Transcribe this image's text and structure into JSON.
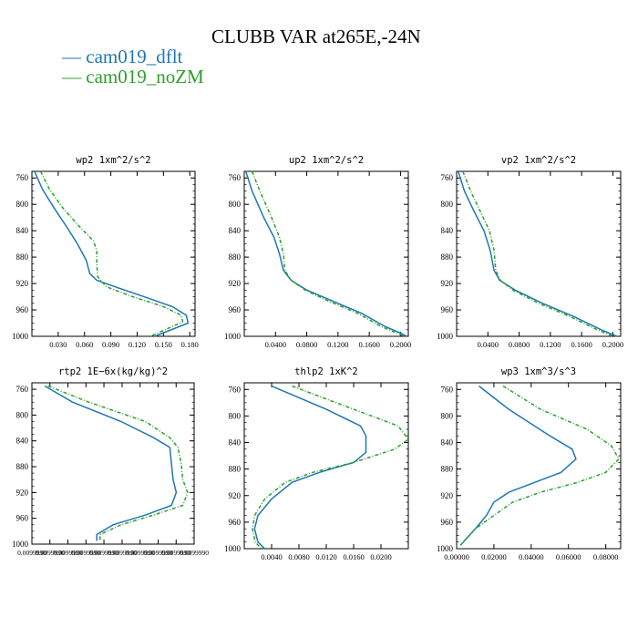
{
  "title": "CLUBB VAR at265E,-24N",
  "legend": [
    {
      "label": "— cam019_dflt",
      "color": "#1f77b4"
    },
    {
      "label": "— cam019_noZM",
      "color": "#2ca02c"
    }
  ],
  "chart_data": [
    {
      "type": "line",
      "title": "wp2   1xm^2/s^2",
      "xlim": [
        0.0,
        0.186
      ],
      "ylim": [
        750,
        1000
      ],
      "y_reversed": true,
      "xticks": [
        0.03,
        0.06,
        0.09,
        0.12,
        0.15,
        0.18
      ],
      "xticklabels": [
        "0.030",
        "0.060",
        "0.090",
        "0.120",
        "0.150",
        "0.180"
      ],
      "yticks": [
        760,
        800,
        840,
        880,
        920,
        960,
        1000
      ],
      "series": [
        {
          "name": "cam019_dflt",
          "color": "#1f77b4",
          "dashed": false,
          "x": [
            0.003,
            0.012,
            0.025,
            0.04,
            0.052,
            0.062,
            0.066,
            0.074,
            0.095,
            0.128,
            0.16,
            0.176,
            0.178,
            0.14
          ],
          "y": [
            750,
            777,
            805,
            835,
            860,
            885,
            905,
            915,
            925,
            940,
            955,
            968,
            980,
            1000
          ]
        },
        {
          "name": "cam019_noZM",
          "color": "#2ca02c",
          "dashed": true,
          "x": [
            0.01,
            0.02,
            0.035,
            0.055,
            0.07,
            0.074,
            0.074,
            0.075,
            0.085,
            0.115,
            0.15,
            0.17,
            0.172,
            0.135
          ],
          "y": [
            750,
            777,
            805,
            835,
            855,
            870,
            890,
            910,
            925,
            940,
            955,
            968,
            978,
            1000
          ]
        }
      ]
    },
    {
      "type": "line",
      "title": "up2   1xm^2/s^2",
      "xlim": [
        0.0,
        0.21
      ],
      "ylim": [
        750,
        1000
      ],
      "y_reversed": true,
      "xticks": [
        0.04,
        0.08,
        0.12,
        0.16,
        0.2
      ],
      "xticklabels": [
        "0.0400",
        "0.0800",
        "0.1200",
        "0.1600",
        "0.2000"
      ],
      "yticks": [
        760,
        800,
        840,
        880,
        920,
        960,
        1000
      ],
      "series": [
        {
          "name": "cam019_dflt",
          "color": "#1f77b4",
          "dashed": false,
          "x": [
            0.002,
            0.01,
            0.025,
            0.038,
            0.045,
            0.05,
            0.06,
            0.08,
            0.11,
            0.15,
            0.18,
            0.2,
            0.208
          ],
          "y": [
            750,
            780,
            820,
            850,
            875,
            900,
            915,
            930,
            945,
            965,
            985,
            995,
            1000
          ]
        },
        {
          "name": "cam019_noZM",
          "color": "#2ca02c",
          "dashed": true,
          "x": [
            0.01,
            0.02,
            0.035,
            0.045,
            0.05,
            0.052,
            0.06,
            0.078,
            0.105,
            0.145,
            0.175,
            0.195,
            0.205
          ],
          "y": [
            750,
            780,
            820,
            850,
            875,
            900,
            915,
            930,
            945,
            965,
            985,
            995,
            1000
          ]
        }
      ]
    },
    {
      "type": "line",
      "title": "vp2   1xm^2/s^2",
      "xlim": [
        0.0,
        0.21
      ],
      "ylim": [
        750,
        1000
      ],
      "y_reversed": true,
      "xticks": [
        0.04,
        0.08,
        0.12,
        0.16,
        0.2
      ],
      "xticklabels": [
        "0.0400",
        "0.0800",
        "0.1200",
        "0.1600",
        "0.2000"
      ],
      "yticks": [
        760,
        800,
        840,
        880,
        920,
        960,
        1000
      ],
      "series": [
        {
          "name": "cam019_dflt",
          "color": "#1f77b4",
          "dashed": false,
          "x": [
            0.002,
            0.01,
            0.022,
            0.035,
            0.043,
            0.048,
            0.055,
            0.075,
            0.11,
            0.15,
            0.185,
            0.205
          ],
          "y": [
            750,
            780,
            810,
            840,
            870,
            900,
            915,
            930,
            950,
            970,
            990,
            1000
          ]
        },
        {
          "name": "cam019_noZM",
          "color": "#2ca02c",
          "dashed": true,
          "x": [
            0.008,
            0.018,
            0.03,
            0.042,
            0.048,
            0.05,
            0.056,
            0.072,
            0.105,
            0.145,
            0.18,
            0.2
          ],
          "y": [
            750,
            780,
            810,
            840,
            870,
            900,
            915,
            930,
            950,
            970,
            990,
            1000
          ]
        }
      ]
    },
    {
      "type": "line",
      "title": "rtp2   1E−6x(kg/kg)^2",
      "xlim": [
        0.0,
        1.0
      ],
      "ylim": [
        750,
        1000
      ],
      "y_reversed": true,
      "xticks": [
        0.0,
        0.111,
        0.222,
        0.333,
        0.444,
        0.556,
        0.667,
        0.778,
        0.889,
        1.0
      ],
      "xticklabels": [
        "0.0099990",
        "0.0099990",
        "0.0099990",
        "0.0099990",
        "0.0099990",
        "0.0099990",
        "0.0099990",
        "0.0099990",
        "0.0099990",
        "0.0099990"
      ],
      "yticks": [
        760,
        800,
        840,
        880,
        920,
        960,
        1000
      ],
      "series": [
        {
          "name": "cam019_dflt",
          "color": "#1f77b4",
          "dashed": false,
          "x": [
            0.08,
            0.25,
            0.55,
            0.75,
            0.85,
            0.86,
            0.87,
            0.89,
            0.86,
            0.7,
            0.5,
            0.4,
            0.4
          ],
          "y": [
            755,
            780,
            810,
            835,
            850,
            875,
            900,
            920,
            940,
            955,
            970,
            985,
            995
          ]
        },
        {
          "name": "cam019_noZM",
          "color": "#2ca02c",
          "dashed": true,
          "x": [
            0.1,
            0.35,
            0.7,
            0.85,
            0.9,
            0.92,
            0.93,
            0.96,
            0.93,
            0.75,
            0.55,
            0.42,
            0.42
          ],
          "y": [
            755,
            780,
            810,
            835,
            850,
            875,
            900,
            920,
            940,
            955,
            970,
            985,
            995
          ]
        }
      ]
    },
    {
      "type": "line",
      "title": "thlp2   1xK^2",
      "xlim": [
        0.0,
        0.024
      ],
      "ylim": [
        750,
        1000
      ],
      "y_reversed": true,
      "xticks": [
        0.004,
        0.008,
        0.012,
        0.016,
        0.02
      ],
      "xticklabels": [
        "0.0040",
        "0.0080",
        "0.0120",
        "0.0160",
        "0.0200"
      ],
      "yticks": [
        760,
        800,
        840,
        880,
        920,
        960,
        1000
      ],
      "series": [
        {
          "name": "cam019_dflt",
          "color": "#1f77b4",
          "dashed": false,
          "x": [
            0.004,
            0.012,
            0.017,
            0.0178,
            0.0178,
            0.016,
            0.011,
            0.007,
            0.004,
            0.002,
            0.0015,
            0.002,
            0.003
          ],
          "y": [
            755,
            790,
            815,
            830,
            855,
            870,
            885,
            900,
            925,
            950,
            970,
            990,
            1000
          ]
        },
        {
          "name": "cam019_noZM",
          "color": "#2ca02c",
          "dashed": true,
          "x": [
            0.007,
            0.016,
            0.0225,
            0.024,
            0.022,
            0.016,
            0.01,
            0.006,
            0.003,
            0.0015,
            0.0012,
            0.0016,
            0.0025
          ],
          "y": [
            755,
            790,
            815,
            835,
            850,
            870,
            885,
            900,
            925,
            950,
            970,
            990,
            1000
          ]
        }
      ]
    },
    {
      "type": "line",
      "title": "wp3   1xm^3/s^3",
      "xlim": [
        0.0,
        0.088
      ],
      "ylim": [
        750,
        1000
      ],
      "y_reversed": true,
      "xticks": [
        0.0,
        0.02,
        0.04,
        0.06,
        0.08
      ],
      "xticklabels": [
        "0.00000",
        "0.02000",
        "0.04000",
        "0.06000",
        "0.08000"
      ],
      "yticks": [
        760,
        800,
        840,
        880,
        920,
        960,
        1000
      ],
      "series": [
        {
          "name": "cam019_dflt",
          "color": "#1f77b4",
          "dashed": false,
          "x": [
            0.012,
            0.028,
            0.05,
            0.062,
            0.064,
            0.056,
            0.042,
            0.028,
            0.02,
            0.016,
            0.01,
            0.002
          ],
          "y": [
            755,
            790,
            830,
            850,
            865,
            885,
            900,
            915,
            930,
            950,
            970,
            995
          ]
        },
        {
          "name": "cam019_noZM",
          "color": "#2ca02c",
          "dashed": true,
          "x": [
            0.025,
            0.045,
            0.07,
            0.083,
            0.087,
            0.08,
            0.065,
            0.045,
            0.03,
            0.02,
            0.01,
            0.002
          ],
          "y": [
            755,
            790,
            820,
            845,
            865,
            885,
            900,
            915,
            930,
            950,
            970,
            995
          ]
        }
      ]
    }
  ]
}
